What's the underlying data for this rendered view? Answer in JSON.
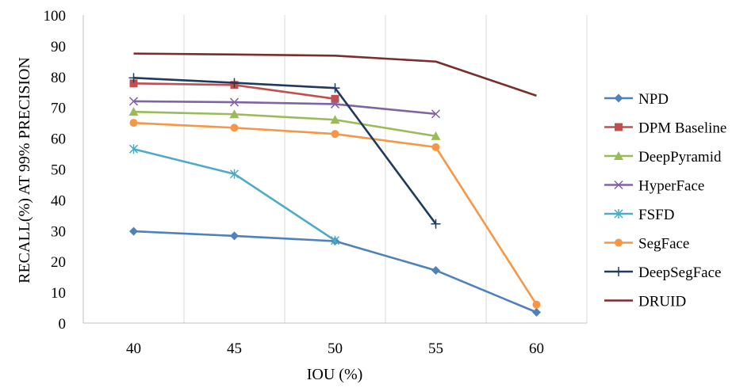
{
  "chart_data": {
    "type": "line",
    "title": "",
    "xlabel": "IOU (%)",
    "ylabel": "RECALL(%) AT 99% PRECISION",
    "categories": [
      "40",
      "45",
      "50",
      "55",
      "60"
    ],
    "ylim": [
      0,
      100
    ],
    "yticks": [
      "0",
      "10",
      "20",
      "30",
      "40",
      "50",
      "60",
      "70",
      "80",
      "90",
      "100"
    ],
    "legend_position": "right",
    "series": [
      {
        "name": "NPD",
        "color": "#4F81BD",
        "marker": "diamond",
        "values": [
          29.8,
          28.3,
          26.6,
          17.1,
          3.5
        ]
      },
      {
        "name": "DPM Baseline",
        "color": "#C0504D",
        "marker": "square",
        "values": [
          77.8,
          77.3,
          72.8,
          null,
          null
        ]
      },
      {
        "name": "DeepPyramid",
        "color": "#9BBB59",
        "marker": "triangle",
        "values": [
          68.6,
          67.8,
          66.0,
          60.7,
          null
        ]
      },
      {
        "name": "HyperFace",
        "color": "#8064A2",
        "marker": "x",
        "values": [
          72.0,
          71.7,
          71.1,
          67.9,
          null
        ]
      },
      {
        "name": "FSFD",
        "color": "#4BACC6",
        "marker": "star",
        "values": [
          56.5,
          48.4,
          26.8,
          null,
          null
        ]
      },
      {
        "name": "SegFace",
        "color": "#F79646",
        "marker": "circle",
        "values": [
          65.0,
          63.4,
          61.4,
          57.1,
          6.0
        ]
      },
      {
        "name": "DeepSegFace",
        "color": "#1F3A5F",
        "marker": "plus",
        "values": [
          79.6,
          78.0,
          76.3,
          32.2,
          null
        ]
      },
      {
        "name": "DRUID",
        "color": "#7B2C2C",
        "marker": "none",
        "values": [
          87.5,
          87.2,
          86.8,
          84.9,
          73.8
        ]
      }
    ]
  }
}
